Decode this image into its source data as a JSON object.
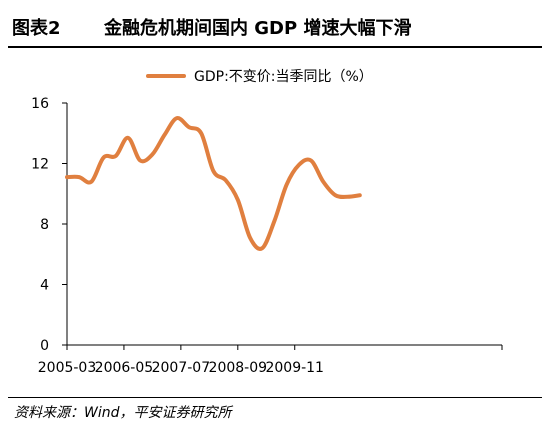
{
  "header": {
    "figure_number": "图表2",
    "title": "金融危机期间国内 GDP 增速大幅下滑"
  },
  "legend": {
    "label": "GDP:不变价:当季同比（%）"
  },
  "source": "资料来源：Wind，平安证券研究所",
  "colors": {
    "series": "#E07F3F",
    "axis": "#000000"
  },
  "chart_data": {
    "type": "line",
    "title": "",
    "xlabel": "",
    "ylabel": "",
    "ylim": [
      0,
      16
    ],
    "yticks": [
      0,
      4,
      8,
      12,
      16
    ],
    "xtick_labels": [
      "2005-03",
      "2006-05",
      "2007-07",
      "2008-09",
      "2009-11"
    ],
    "grid": false,
    "legend_position": "top",
    "series": [
      {
        "name": "GDP:不变价:当季同比（%）",
        "x": [
          "2005-03",
          "2005-06",
          "2005-09",
          "2005-12",
          "2006-03",
          "2006-06",
          "2006-09",
          "2006-12",
          "2007-03",
          "2007-06",
          "2007-09",
          "2007-12",
          "2008-03",
          "2008-06",
          "2008-09",
          "2008-12",
          "2009-03",
          "2009-06",
          "2009-09",
          "2009-12",
          "2010-03",
          "2010-06",
          "2010-09",
          "2010-12",
          "2011-03"
        ],
        "values": [
          11.1,
          11.1,
          10.8,
          12.4,
          12.5,
          13.7,
          12.2,
          12.6,
          13.9,
          15.0,
          14.4,
          14.0,
          11.5,
          10.9,
          9.6,
          7.1,
          6.4,
          8.2,
          10.6,
          11.9,
          12.2,
          10.8,
          9.9,
          9.8,
          9.9
        ]
      }
    ]
  }
}
